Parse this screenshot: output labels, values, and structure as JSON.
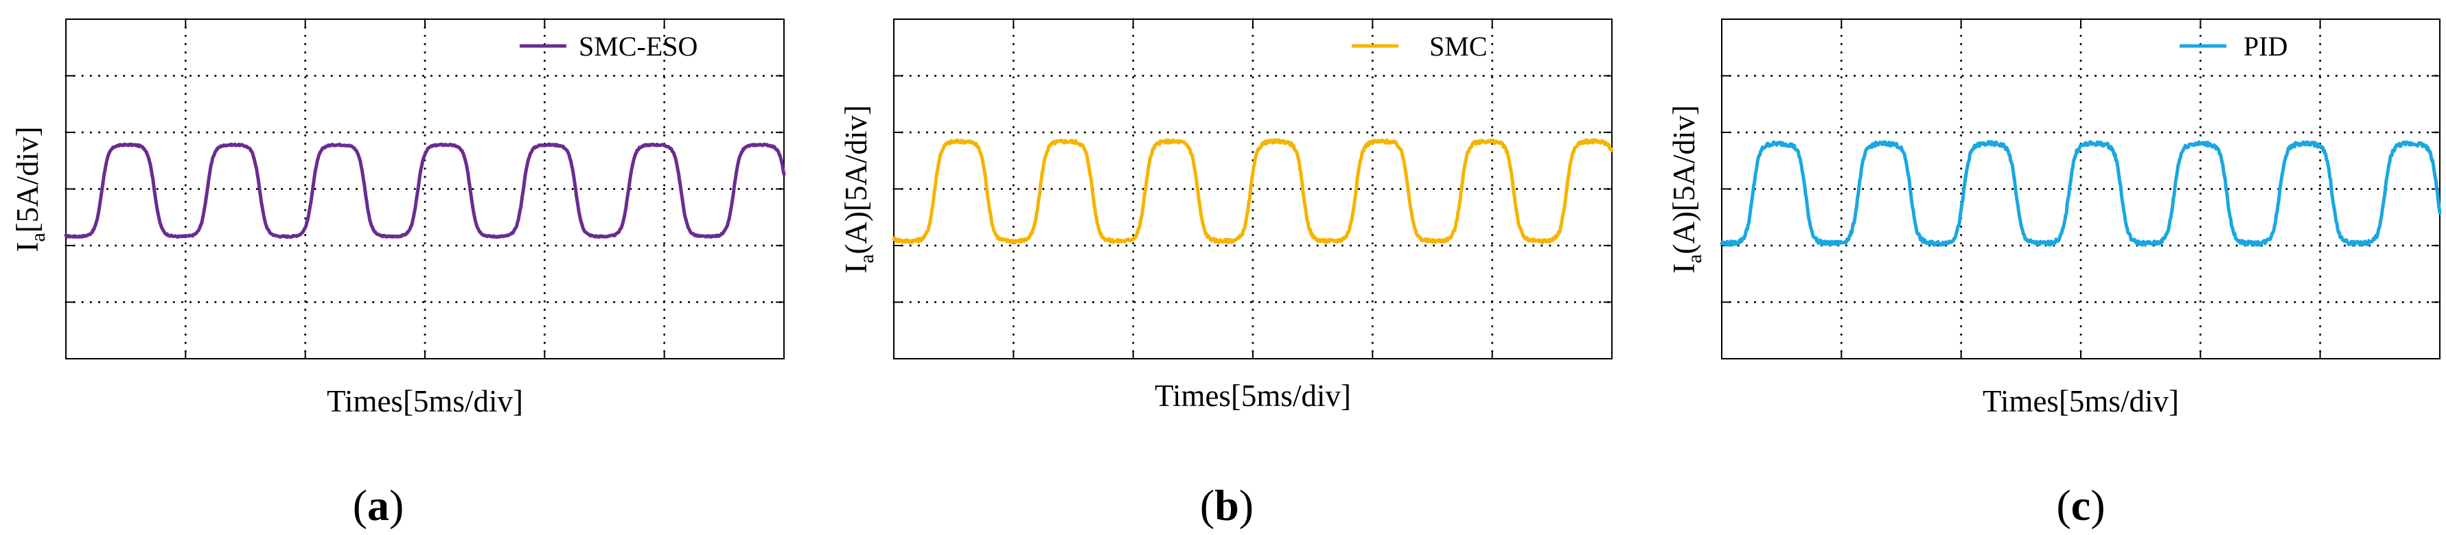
{
  "chart_data": [
    {
      "type": "line",
      "panel": "a",
      "caption_open": "(",
      "caption_label": "a",
      "caption_close": ")",
      "series": [
        {
          "name": "SMC-ESO",
          "color": "#6A2C91"
        }
      ],
      "legend": "SMC-ESO",
      "xlabel": "Times[5ms/div]",
      "ylabel_main": "I",
      "ylabel_sub": "a",
      "ylabel_rest": "[5A/div]",
      "x_divisions": 6,
      "y_divisions": 6,
      "xlim": [
        0,
        30
      ],
      "ylim": [
        -15,
        15
      ],
      "waveform": {
        "period_ms": 4.4,
        "phase_ms": 1.5,
        "high_A": 3.9,
        "low_A": -4.2,
        "noise_A": 0.12
      },
      "grid": true
    },
    {
      "type": "line",
      "panel": "b",
      "caption_open": "(",
      "caption_label": "b",
      "caption_close": ")",
      "series": [
        {
          "name": "SMC",
          "color": "#F5B400"
        }
      ],
      "legend": "SMC",
      "xlabel": "Times[5ms/div]",
      "ylabel_main": "I",
      "ylabel_sub": "a",
      "ylabel_rest": "(A)[5A/div]",
      "x_divisions": 6,
      "y_divisions": 6,
      "xlim": [
        0,
        30
      ],
      "ylim": [
        -15,
        15
      ],
      "waveform": {
        "period_ms": 4.4,
        "phase_ms": 1.7,
        "high_A": 4.2,
        "low_A": -4.6,
        "noise_A": 0.28
      },
      "grid": true
    },
    {
      "type": "line",
      "panel": "c",
      "caption_open": "(",
      "caption_label": "c",
      "caption_close": ")",
      "series": [
        {
          "name": "PID",
          "color": "#1AA7E0"
        }
      ],
      "legend": "PID",
      "xlabel": "Times[5ms/div]",
      "ylabel_main": "I",
      "ylabel_sub": "a",
      "ylabel_rest": "(A)[5A/div]",
      "x_divisions": 6,
      "y_divisions": 6,
      "xlim": [
        0,
        30
      ],
      "ylim": [
        -15,
        15
      ],
      "waveform": {
        "period_ms": 4.4,
        "phase_ms": 1.3,
        "high_A": 4.0,
        "low_A": -4.8,
        "noise_A": 0.35
      },
      "grid": true
    }
  ]
}
